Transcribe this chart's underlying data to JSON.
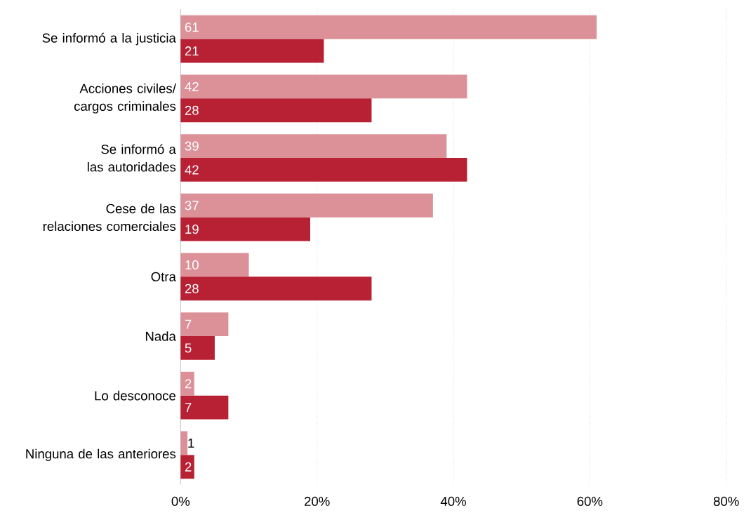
{
  "chart_data": {
    "type": "bar",
    "orientation": "horizontal",
    "categories": [
      "Se informó a la justicia",
      "Acciones civiles/ cargos criminales",
      "Se informó a las autoridades",
      "Cese de las relaciones comerciales",
      "Otra",
      "Nada",
      "Lo desconoce",
      "Ninguna de las anteriores"
    ],
    "series": [
      {
        "color": "#dc9199",
        "values": [
          61,
          42,
          39,
          37,
          10,
          7,
          2,
          1
        ]
      },
      {
        "color": "#b82034",
        "values": [
          21,
          28,
          42,
          19,
          28,
          5,
          7,
          2
        ]
      }
    ],
    "xlim": [
      0,
      80
    ],
    "xticks": [
      {
        "value": 0,
        "label": "0%"
      },
      {
        "value": 20,
        "label": "20%"
      },
      {
        "value": 40,
        "label": "40%"
      },
      {
        "value": 60,
        "label": "60%"
      },
      {
        "value": 80,
        "label": "80%"
      }
    ],
    "grid": "x",
    "data_labels": true
  }
}
